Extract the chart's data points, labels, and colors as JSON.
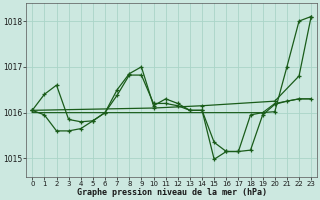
{
  "xlabel": "Graphe pression niveau de la mer (hPa)",
  "ylim": [
    1014.6,
    1018.4
  ],
  "xlim": [
    -0.5,
    23.5
  ],
  "xticks": [
    0,
    1,
    2,
    3,
    4,
    5,
    6,
    7,
    8,
    9,
    10,
    11,
    12,
    13,
    14,
    15,
    16,
    17,
    18,
    19,
    20,
    21,
    22,
    23
  ],
  "yticks": [
    1015,
    1016,
    1017,
    1018
  ],
  "background_color": "#cce8e0",
  "grid_color": "#aad4c8",
  "line_color": "#1a5c1a",
  "series": [
    {
      "x": [
        0,
        1,
        2,
        3,
        4,
        5,
        6,
        7,
        8,
        9,
        10,
        11,
        12,
        13,
        14,
        15,
        16,
        17,
        18,
        19,
        20,
        21,
        22,
        23
      ],
      "y": [
        1016.05,
        1016.4,
        1016.6,
        1015.85,
        1015.8,
        1015.82,
        1016.0,
        1016.5,
        1016.85,
        1017.0,
        1016.15,
        1016.3,
        1016.2,
        1016.05,
        1016.05,
        1014.98,
        1015.15,
        1015.15,
        1015.95,
        1016.0,
        1016.02,
        1017.0,
        1018.0,
        1018.1
      ],
      "marker": true
    },
    {
      "x": [
        0,
        1,
        2,
        3,
        4,
        5,
        6,
        7,
        8,
        9,
        10,
        11,
        12,
        13,
        14,
        15,
        16,
        17,
        18,
        19,
        20,
        21,
        22,
        23
      ],
      "y": [
        1016.05,
        1015.95,
        1015.6,
        1015.6,
        1015.65,
        1015.82,
        1016.0,
        1016.38,
        1016.82,
        1016.82,
        1016.2,
        1016.2,
        1016.15,
        1016.05,
        1016.05,
        1015.35,
        1015.15,
        1015.15,
        1015.18,
        1015.95,
        1016.18,
        1016.25,
        1016.3,
        1016.3
      ],
      "marker": true
    },
    {
      "x": [
        0,
        10,
        14,
        20,
        22,
        23
      ],
      "y": [
        1016.05,
        1016.1,
        1016.15,
        1016.25,
        1016.8,
        1018.1
      ],
      "marker": true
    },
    {
      "x": [
        0,
        1,
        2,
        3,
        4,
        5,
        6,
        7,
        8,
        9,
        10,
        11,
        12,
        13,
        14,
        15,
        16,
        17,
        18,
        19,
        20,
        21,
        22,
        23
      ],
      "y": [
        1016.0,
        1016.0,
        1016.0,
        1016.0,
        1016.0,
        1016.0,
        1016.0,
        1016.0,
        1016.0,
        1016.0,
        1016.0,
        1016.0,
        1016.0,
        1016.0,
        1016.0,
        1016.0,
        1016.0,
        1016.0,
        1016.0,
        1016.0,
        1016.2,
        1016.25,
        1016.3,
        1016.3
      ],
      "marker": false
    }
  ]
}
